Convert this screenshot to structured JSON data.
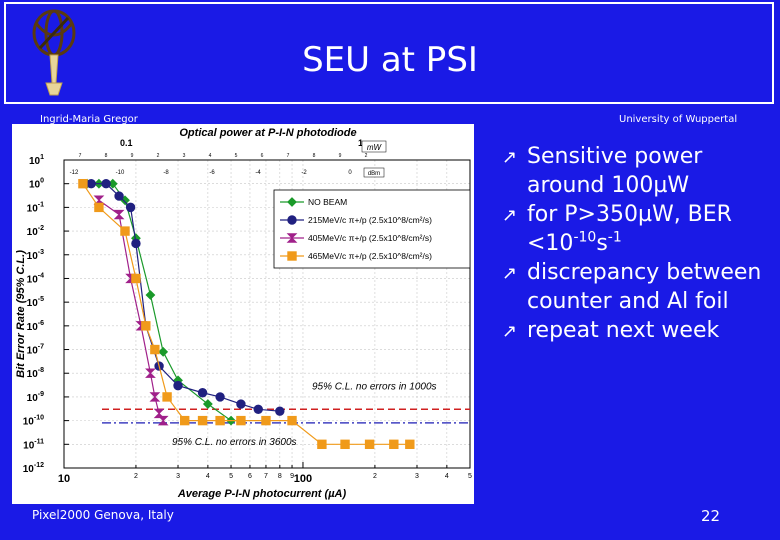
{
  "slide": {
    "title": "SEU at PSI",
    "author": "Ingrid-Maria Gregor",
    "institution": "University of Wuppertal",
    "footer": "Pixel2000 Genova, Italy",
    "page": "22"
  },
  "bullets": [
    {
      "parts": [
        {
          "t": "Sensitive power around 100"
        },
        {
          "t": "µ",
          "sym": true
        },
        {
          "t": "W"
        }
      ]
    },
    {
      "parts": [
        {
          "t": "for P>350"
        },
        {
          "t": "µ",
          "sym": true
        },
        {
          "t": "W, BER <10"
        },
        {
          "t": "-10",
          "sup": true
        },
        {
          "t": "s"
        },
        {
          "t": "-1",
          "sup": true
        }
      ]
    },
    {
      "parts": [
        {
          "t": "discrepancy between counter and Al foil"
        }
      ]
    },
    {
      "parts": [
        {
          "t": "repeat next week"
        }
      ]
    }
  ],
  "colors": {
    "background": "#1a1ae6",
    "text": "#ffffff"
  },
  "icons": {
    "bullet": "arrow-up-right-icon",
    "logo": "armillary-sphere-logo"
  },
  "chart_data": {
    "type": "scatter",
    "title": "Optical power at P-I-N photodiode",
    "xlabel": "Average P-I-N photocurrent (µA)",
    "ylabel": "Bit Error Rate (95% C.L.)",
    "xscale": "log",
    "yscale": "log",
    "xlim": [
      10,
      500
    ],
    "ylim": [
      1e-12,
      10
    ],
    "x_tick_labels": [
      "10",
      "2",
      "3",
      "4",
      "5",
      "6",
      "7",
      "8",
      "9",
      "100",
      "2",
      "3",
      "4",
      "5"
    ],
    "y_tick_labels": [
      "10^1",
      "10^0",
      "10^-1",
      "10^-2",
      "10^-3",
      "10^-4",
      "10^-5",
      "10^-6",
      "10^-7",
      "10^-8",
      "10^-9",
      "10^-10",
      "10^-11",
      "10^-12"
    ],
    "top_axis_mw": {
      "label": "mW",
      "ticks": [
        "0.1",
        "1"
      ],
      "minor": [
        "7",
        "8",
        "9",
        "2",
        "3",
        "4",
        "5",
        "6",
        "7",
        "8",
        "9",
        "2"
      ]
    },
    "top_axis_dbm": {
      "label": "dBm",
      "ticks": [
        "-12",
        "-10",
        "-8",
        "-6",
        "-4",
        "-2",
        "0"
      ]
    },
    "grid": true,
    "legend_position": "upper-right",
    "series": [
      {
        "name": "NO BEAM",
        "color": "#1a9a2a",
        "marker": "diamond",
        "x": [
          12.5,
          14,
          16,
          18,
          20,
          23,
          26,
          30,
          40,
          50
        ],
        "y": [
          1,
          1,
          1,
          0.2,
          0.005,
          2e-05,
          8e-08,
          5e-09,
          5e-10,
          1e-10
        ]
      },
      {
        "name": "215MeV/c π+/p (2.5x10^8/cm²/s)",
        "color": "#202080",
        "marker": "circle",
        "x": [
          13,
          15,
          17,
          19,
          20,
          22,
          25,
          30,
          38,
          45,
          55,
          65,
          80
        ],
        "y": [
          1,
          1,
          0.3,
          0.1,
          0.003,
          1e-06,
          2e-08,
          3e-09,
          1.5e-09,
          1e-09,
          5e-10,
          3e-10,
          2.5e-10
        ]
      },
      {
        "name": "405MeV/c π+/p (2.5x10^8/cm²/s)",
        "color": "#a0208a",
        "marker": "bowtie",
        "x": [
          14,
          17,
          19,
          21,
          23,
          24,
          25,
          26
        ],
        "y": [
          0.2,
          0.05,
          0.0001,
          1e-06,
          1e-08,
          1e-09,
          2e-10,
          1e-10
        ]
      },
      {
        "name": "465MeV/c π+/p (2.5x10^8/cm²/s)",
        "color": "#f09a1a",
        "marker": "square",
        "x": [
          12,
          14,
          18,
          20,
          22,
          24,
          27,
          32,
          38,
          45,
          55,
          70,
          90,
          120,
          150,
          190,
          240,
          280
        ],
        "y": [
          1,
          0.1,
          0.01,
          0.0001,
          1e-06,
          1e-07,
          1e-09,
          1e-10,
          1e-10,
          1e-10,
          1e-10,
          1e-10,
          1e-10,
          1e-11,
          1e-11,
          1e-11,
          1e-11,
          1e-11
        ]
      }
    ],
    "reference_lines": [
      {
        "label": "95% C.L. no errors in 1000s",
        "y": 3e-10,
        "style": "dashed",
        "color": "#d02020"
      },
      {
        "label": "95% C.L. no errors in 3600s",
        "y": 8e-11,
        "style": "dashdot",
        "color": "#4040c0"
      }
    ]
  }
}
